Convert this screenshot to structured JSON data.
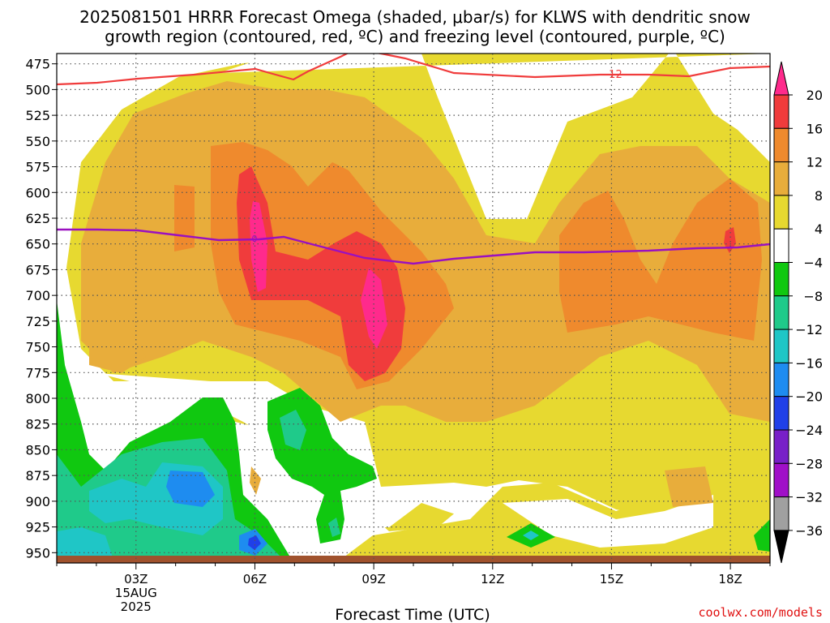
{
  "chart_data": {
    "type": "heatmap",
    "title_line1": "2025081501 HRRR Forecast Omega (shaded, μbar/s) for KLWS with dendritic snow",
    "title_line2": "growth region (contoured, red, ºC) and freezing level (contoured, purple, ºC)",
    "xlabel": "Forecast Time (UTC)",
    "x_ticks": [
      {
        "hour": 3,
        "label": "03Z",
        "sub1": "15AUG",
        "sub2": "2025"
      },
      {
        "hour": 6,
        "label": "06Z",
        "sub1": "",
        "sub2": ""
      },
      {
        "hour": 9,
        "label": "09Z",
        "sub1": "",
        "sub2": ""
      },
      {
        "hour": 12,
        "label": "12Z",
        "sub1": "",
        "sub2": ""
      },
      {
        "hour": 15,
        "label": "15Z",
        "sub1": "",
        "sub2": ""
      },
      {
        "hour": 18,
        "label": "18Z",
        "sub1": "",
        "sub2": ""
      }
    ],
    "x_range": [
      1,
      19
    ],
    "y_ticks": [
      "475",
      "500",
      "525",
      "550",
      "575",
      "600",
      "625",
      "650",
      "675",
      "700",
      "725",
      "750",
      "775",
      "800",
      "825",
      "850",
      "875",
      "900",
      "925",
      "950"
    ],
    "y_range_hpa": [
      465,
      960
    ],
    "colorbar": {
      "labels": [
        "20",
        "16",
        "12",
        "8",
        "4",
        "−4",
        "−8",
        "−12",
        "−16",
        "−20",
        "−24",
        "−28",
        "−32",
        "−36"
      ],
      "colors": [
        "#ff2a8c",
        "#f03c3c",
        "#ef8a2d",
        "#e8ad3b",
        "#e7d930",
        "#ffffff",
        "#10c810",
        "#1fca8a",
        "#1fc6c6",
        "#1e8cf0",
        "#2040e8",
        "#7820c8",
        "#a010c8",
        "#a0a0a0"
      ]
    },
    "contours": {
      "dgz_label": "−12",
      "freezing_label": "0",
      "dgz_color": "#f03c3c",
      "freezing_color": "#9a10c0"
    },
    "credit": "coolwx.com/models"
  }
}
